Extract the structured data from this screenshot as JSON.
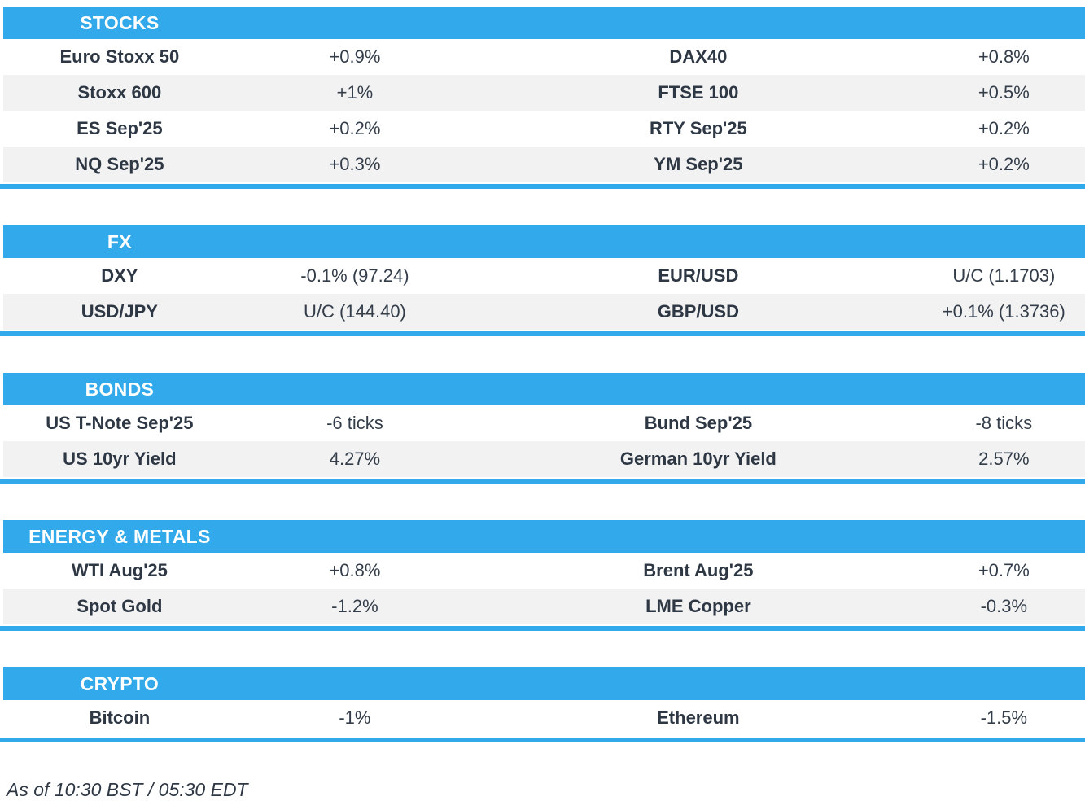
{
  "colors": {
    "accent": "#31a9ea",
    "stripe": "#f2f2f2",
    "text": "#2e3744",
    "header_text": "#ffffff"
  },
  "sections": [
    {
      "id": "stocks",
      "title": "STOCKS",
      "rows": [
        [
          "Euro Stoxx 50",
          "+0.9%",
          "DAX40",
          "+0.8%"
        ],
        [
          "Stoxx 600",
          "+1%",
          "FTSE 100",
          "+0.5%"
        ],
        [
          "ES Sep'25",
          "+0.2%",
          "RTY Sep'25",
          "+0.2%"
        ],
        [
          "NQ Sep'25",
          "+0.3%",
          "YM Sep'25",
          "+0.2%"
        ]
      ]
    },
    {
      "id": "fx",
      "title": "FX",
      "rows": [
        [
          "DXY",
          "-0.1% (97.24)",
          "EUR/USD",
          "U/C (1.1703)"
        ],
        [
          "USD/JPY",
          "U/C (144.40)",
          "GBP/USD",
          "+0.1% (1.3736)"
        ]
      ]
    },
    {
      "id": "bonds",
      "title": "BONDS",
      "rows": [
        [
          "US T-Note Sep'25",
          "-6 ticks",
          "Bund Sep'25",
          "-8 ticks"
        ],
        [
          "US 10yr Yield",
          "4.27%",
          "German 10yr Yield",
          "2.57%"
        ]
      ]
    },
    {
      "id": "energy-metals",
      "title": "ENERGY & METALS",
      "rows": [
        [
          "WTI Aug'25",
          "+0.8%",
          "Brent Aug'25",
          "+0.7%"
        ],
        [
          "Spot Gold",
          "-1.2%",
          "LME Copper",
          "-0.3%"
        ]
      ]
    },
    {
      "id": "crypto",
      "title": "CRYPTO",
      "rows": [
        [
          "Bitcoin",
          "-1%",
          "Ethereum",
          "-1.5%"
        ]
      ]
    }
  ],
  "footer": {
    "as_of": "As of 10:30 BST / 05:30 EDT"
  }
}
